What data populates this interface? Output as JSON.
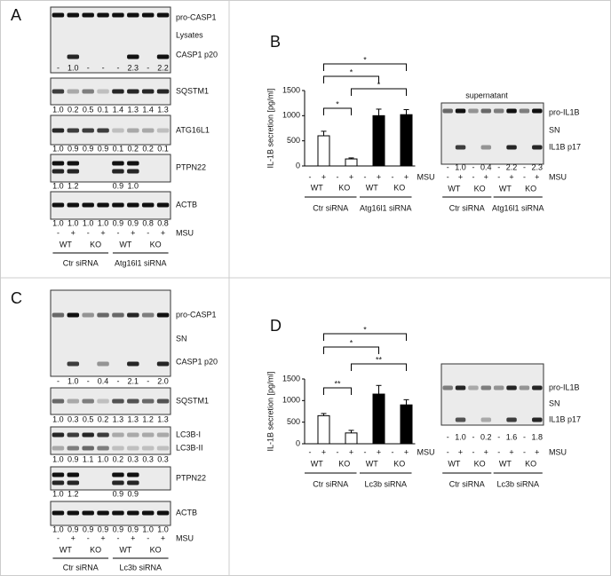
{
  "chart_data": [
    {
      "type": "bar",
      "y_label": "IL-1B secretion [pg/ml]",
      "categories": [
        "-",
        "+",
        "-",
        "+",
        "-",
        "+",
        "-",
        "+"
      ],
      "values": [
        0,
        600,
        0,
        140,
        0,
        1000,
        0,
        1020
      ],
      "errors": [
        0,
        90,
        0,
        20,
        0,
        130,
        0,
        100
      ],
      "colors": [
        "#ffffff",
        "#ffffff",
        "#ffffff",
        "#ffffff",
        "#000000",
        "#000000",
        "#000000",
        "#000000"
      ],
      "ylim": [
        0,
        1500
      ],
      "yticks": [
        0,
        500,
        1000,
        1500
      ],
      "treatment": "MSU",
      "genotypes": [
        "WT",
        "KO",
        "WT",
        "KO"
      ],
      "groups": [
        "Ctr siRNA",
        "Atg16l1 siRNA"
      ],
      "annotations": [
        "*",
        "*",
        "*",
        "*"
      ]
    },
    {
      "type": "bar",
      "y_label": "IL-1B secretion [pg/ml]",
      "categories": [
        "-",
        "+",
        "-",
        "+",
        "-",
        "+",
        "-",
        "+"
      ],
      "values": [
        0,
        650,
        0,
        250,
        0,
        1150,
        0,
        900
      ],
      "errors": [
        0,
        50,
        0,
        60,
        0,
        200,
        0,
        120
      ],
      "colors": [
        "#ffffff",
        "#ffffff",
        "#ffffff",
        "#ffffff",
        "#000000",
        "#000000",
        "#000000",
        "#000000"
      ],
      "ylim": [
        0,
        1500
      ],
      "yticks": [
        0,
        500,
        1000,
        1500
      ],
      "treatment": "MSU",
      "genotypes": [
        "WT",
        "KO",
        "WT",
        "KO"
      ],
      "groups": [
        "Ctr siRNA",
        "Lc3b siRNA"
      ],
      "annotations": [
        "*",
        "*",
        "**",
        "**"
      ]
    }
  ],
  "A": {
    "label": "A",
    "blots": [
      {
        "bands": [
          "pro-CASP1",
          "Lysates",
          "CASP1 p20"
        ],
        "quant": [
          "-",
          "1.0",
          "-",
          "-",
          "-",
          "2.3",
          "-",
          "2.2"
        ]
      },
      {
        "bands": [
          "SQSTM1"
        ],
        "quant": [
          "1.0",
          "0.2",
          "0.5",
          "0.1",
          "1.4",
          "1.3",
          "1.4",
          "1.3"
        ]
      },
      {
        "bands": [
          "ATG16L1"
        ],
        "quant": [
          "1.0",
          "0.9",
          "0.9",
          "0.9",
          "0.1",
          "0.2",
          "0.2",
          "0.1"
        ]
      },
      {
        "bands": [
          "PTPN22"
        ],
        "quant": [
          "1.0",
          "1.2",
          null,
          null,
          "0.9",
          "1.0",
          null,
          null
        ]
      },
      {
        "bands": [
          "ACTB"
        ],
        "quant": [
          "1.0",
          "1.0",
          "1.0",
          "1.0",
          "0.9",
          "0.9",
          "0.8",
          "0.8"
        ]
      }
    ],
    "treatment": "MSU",
    "signs": [
      "-",
      "+",
      "-",
      "+",
      "-",
      "+",
      "-",
      "+"
    ],
    "genotypes": [
      "WT",
      "KO",
      "WT",
      "KO"
    ],
    "groups": [
      "Ctr siRNA",
      "Atg16l1 siRNA"
    ]
  },
  "B": {
    "label": "B",
    "blot": {
      "title": "supernatant",
      "bands": [
        "pro-IL1B",
        "SN",
        "IL1B p17"
      ],
      "quant": [
        "-",
        "1.0",
        "-",
        "0.4",
        "-",
        "2.2",
        "-",
        "2.3"
      ],
      "treatment": "MSU",
      "signs": [
        "-",
        "+",
        "-",
        "+",
        "-",
        "+",
        "-",
        "+"
      ],
      "genotypes": [
        "WT",
        "KO",
        "WT",
        "KO"
      ],
      "groups": [
        "Ctr siRNA",
        "Atg16l1 siRNA"
      ]
    }
  },
  "C": {
    "label": "C",
    "blots": [
      {
        "bands": [
          "pro-CASP1",
          "SN",
          "CASP1 p20"
        ],
        "quant": [
          "-",
          "1.0",
          "-",
          "0.4",
          "-",
          "2.1",
          "-",
          "2.0"
        ]
      },
      {
        "bands": [
          "SQSTM1"
        ],
        "quant": [
          "1.0",
          "0.3",
          "0.5",
          "0.2",
          "1.3",
          "1.3",
          "1.2",
          "1.3"
        ]
      },
      {
        "bands": [
          "LC3B-I",
          "LC3B-II"
        ],
        "quant": [
          "1.0",
          "0.9",
          "1.1",
          "1.0",
          "0.2",
          "0.3",
          "0.3",
          "0.3"
        ]
      },
      {
        "bands": [
          "PTPN22"
        ],
        "quant": [
          "1.0",
          "1.2",
          null,
          null,
          "0.9",
          "0.9",
          null,
          null
        ]
      },
      {
        "bands": [
          "ACTB"
        ],
        "quant": [
          "1.0",
          "0.9",
          "0.9",
          "0.9",
          "0.9",
          "0.9",
          "1.0",
          "1.0"
        ]
      }
    ],
    "treatment": "MSU",
    "signs": [
      "-",
      "+",
      "-",
      "+",
      "-",
      "+",
      "-",
      "+"
    ],
    "genotypes": [
      "WT",
      "KO",
      "WT",
      "KO"
    ],
    "groups": [
      "Ctr siRNA",
      "Lc3b siRNA"
    ]
  },
  "D": {
    "label": "D",
    "blot": {
      "bands": [
        "pro-IL1B",
        "SN",
        "IL1B p17"
      ],
      "quant": [
        "-",
        "1.0",
        "-",
        "0.2",
        "-",
        "1.6",
        "-",
        "1.8"
      ],
      "treatment": "MSU",
      "signs": [
        "-",
        "+",
        "-",
        "+",
        "-",
        "+",
        "-",
        "+"
      ],
      "genotypes": [
        "WT",
        "KO",
        "WT",
        "KO"
      ],
      "groups": [
        "Ctr siRNA",
        "Lc3b siRNA"
      ]
    }
  }
}
